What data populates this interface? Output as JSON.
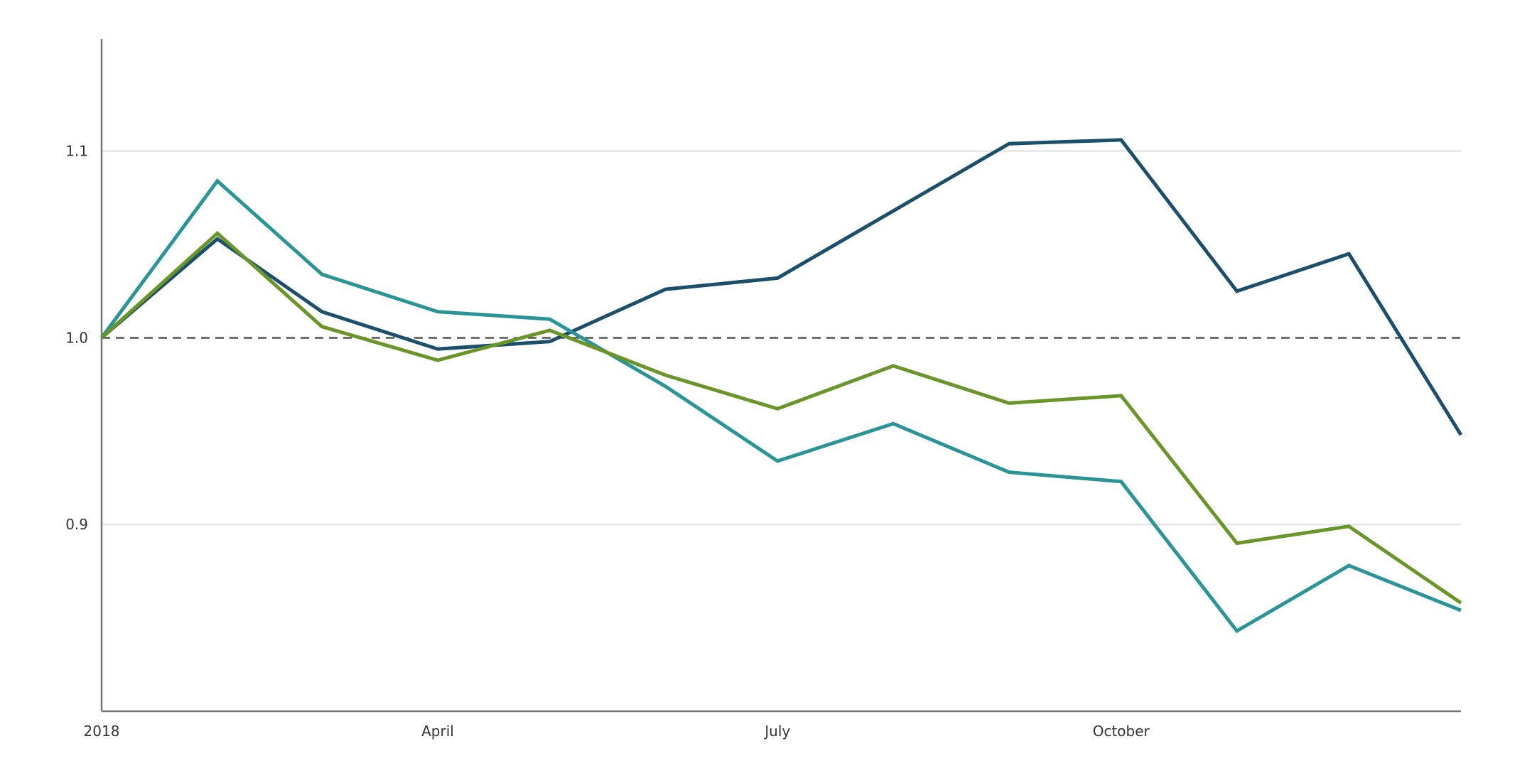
{
  "chart_data": {
    "type": "line",
    "title": "",
    "xlabel": "",
    "ylabel": "",
    "x": [
      "2018-01-01",
      "2018-02-01",
      "2018-03-01",
      "2018-04-01",
      "2018-05-01",
      "2018-06-01",
      "2018-07-01",
      "2018-08-01",
      "2018-09-01",
      "2018-10-01",
      "2018-11-01",
      "2018-12-01",
      "2018-12-31"
    ],
    "x_range": [
      "2018-01-01",
      "2018-12-31"
    ],
    "ylim": [
      0.8,
      1.16
    ],
    "x_ticks": [
      {
        "label": "2018",
        "date": "2018-01-01"
      },
      {
        "label": "April",
        "date": "2018-04-01"
      },
      {
        "label": "July",
        "date": "2018-07-01"
      },
      {
        "label": "October",
        "date": "2018-10-01"
      }
    ],
    "y_ticks": [
      {
        "label": "0.9",
        "value": 0.9
      },
      {
        "label": "1.0",
        "value": 1.0
      },
      {
        "label": "1.1",
        "value": 1.1
      }
    ],
    "reference_line": {
      "value": 1.0,
      "style": "dashed"
    },
    "grid": "horizontal",
    "legend": "none",
    "series": [
      {
        "color": "#1b4f6b",
        "values": [
          1.0,
          1.053,
          1.014,
          0.994,
          0.998,
          1.026,
          1.032,
          1.068,
          1.104,
          1.106,
          1.025,
          1.045,
          0.948
        ]
      },
      {
        "color": "#2a9499",
        "values": [
          1.0,
          1.084,
          1.034,
          1.014,
          1.01,
          0.974,
          0.934,
          0.954,
          0.928,
          0.923,
          0.843,
          0.878,
          0.854
        ]
      },
      {
        "color": "#6a9528",
        "values": [
          1.0,
          1.056,
          1.006,
          0.988,
          1.004,
          0.98,
          0.962,
          0.985,
          0.965,
          0.969,
          0.89,
          0.899,
          0.858
        ]
      }
    ]
  }
}
